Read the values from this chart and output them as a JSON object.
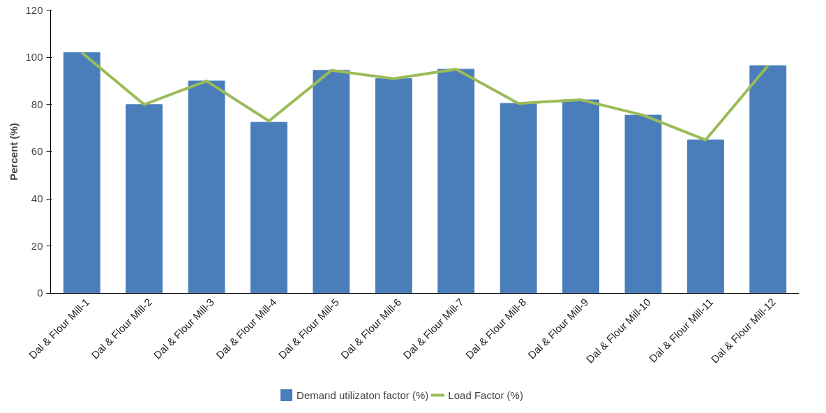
{
  "chart_data": {
    "type": "bar",
    "ylabel": "Percent (%)",
    "categories": [
      "Dal & Flour Mill-1",
      "Dal & Flour Mill-2",
      "Dal & Flour Mill-3",
      "Dal & Flour Mill-4",
      "Dal & Flour Mill-5",
      "Dal & Flour Mill-6",
      "Dal & Flour Mill-7",
      "Dal & Flour Mill-8",
      "Dal & Flour Mill-9",
      "Dal & Flour Mill-10",
      "Dal & Flour Mill-11",
      "Dal & Flour Mill-12"
    ],
    "series": [
      {
        "name": "Demand utilizaton factor (%)",
        "color": "#4a7ebb",
        "values": [
          102,
          80,
          90,
          72.5,
          94.5,
          91,
          95,
          80.5,
          82,
          75.5,
          65,
          96.5
        ]
      },
      {
        "name": "Load Factor (%)",
        "type": "line",
        "color": "#9bbb59",
        "values": [
          102,
          80,
          90,
          73,
          94.5,
          91,
          95,
          80.5,
          82,
          75.5,
          65,
          96.5
        ]
      }
    ],
    "ylim": [
      0,
      120
    ],
    "yticks": [
      0,
      20,
      40,
      60,
      80,
      100,
      120
    ],
    "grid": false,
    "legend": "bottom"
  }
}
